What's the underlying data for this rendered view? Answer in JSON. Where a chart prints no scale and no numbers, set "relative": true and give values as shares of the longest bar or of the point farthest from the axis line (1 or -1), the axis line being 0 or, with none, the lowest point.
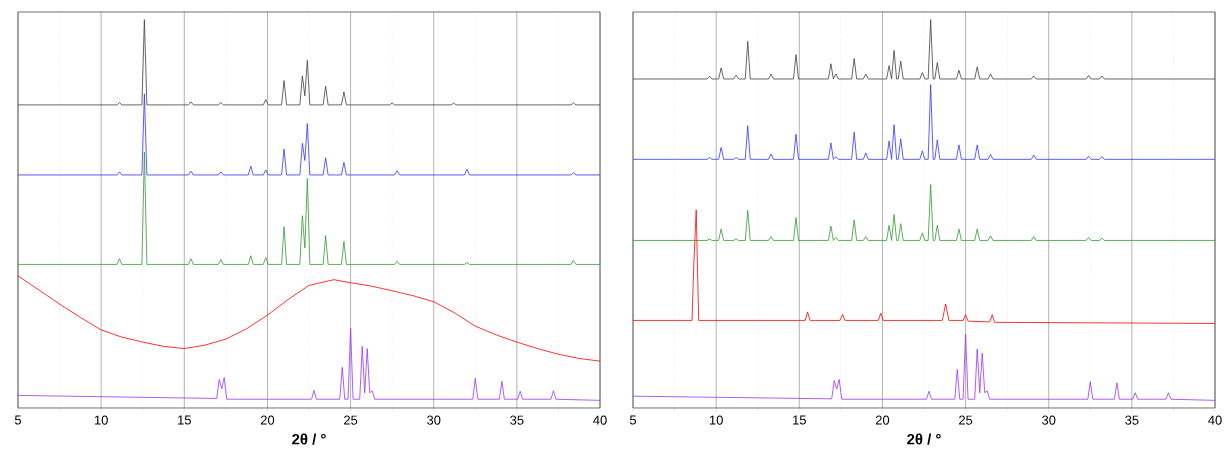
{
  "chart_data": [
    {
      "type": "line",
      "relative": true,
      "xlabel": "**2θ / °**",
      "xlim": [
        5,
        40
      ],
      "xticks": [
        5,
        10,
        15,
        20,
        25,
        30,
        35,
        40
      ],
      "grid": "x",
      "tick_labels": "x",
      "series": [
        {
          "color": "#404040",
          "x": [
            5,
            10.95,
            11.1,
            11.25,
            12.45,
            12.6,
            12.75,
            15.25,
            15.4,
            15.55,
            17.05,
            17.2,
            17.35,
            19.75,
            19.9,
            20.05,
            20.85,
            21.0,
            21.15,
            21.95,
            22.1,
            22.25,
            22.4,
            22.55,
            23.35,
            23.5,
            23.65,
            24.45,
            24.6,
            24.75,
            27.35,
            27.5,
            27.65,
            31.05,
            31.2,
            31.35,
            38.25,
            38.4,
            38.55,
            40
          ],
          "values": [
            0.776,
            0.776,
            0.782,
            0.776,
            0.776,
            1,
            0.776,
            0.776,
            0.784,
            0.776,
            0.776,
            0.782,
            0.776,
            0.776,
            0.79,
            0.776,
            0.776,
            0.84,
            0.776,
            0.776,
            0.852,
            0.8,
            0.893,
            0.776,
            0.776,
            0.825,
            0.776,
            0.776,
            0.81,
            0.776,
            0.776,
            0.781,
            0.776,
            0.776,
            0.781,
            0.776,
            0.776,
            0.781,
            0.776,
            0.776
          ]
        },
        {
          "color": "#3333ff",
          "x": [
            5,
            10.95,
            11.1,
            11.25,
            12.45,
            12.6,
            12.75,
            15.25,
            15.4,
            15.55,
            17.05,
            17.2,
            17.35,
            18.85,
            19.0,
            19.15,
            19.75,
            19.9,
            20.05,
            20.85,
            21.0,
            21.15,
            21.95,
            22.1,
            22.25,
            22.4,
            22.55,
            23.35,
            23.5,
            23.65,
            24.45,
            24.6,
            24.75,
            27.65,
            27.8,
            27.95,
            31.85,
            32.0,
            32.15,
            38.25,
            38.4,
            38.55,
            40
          ],
          "values": [
            0.592,
            0.592,
            0.6,
            0.592,
            0.592,
            0.805,
            0.592,
            0.592,
            0.602,
            0.592,
            0.592,
            0.6,
            0.592,
            0.592,
            0.615,
            0.592,
            0.592,
            0.605,
            0.592,
            0.592,
            0.66,
            0.592,
            0.592,
            0.675,
            0.63,
            0.727,
            0.592,
            0.592,
            0.637,
            0.592,
            0.592,
            0.625,
            0.592,
            0.592,
            0.603,
            0.592,
            0.592,
            0.607,
            0.592,
            0.592,
            0.598,
            0.592,
            0.592
          ]
        },
        {
          "color": "#339933",
          "x": [
            5,
            10.95,
            11.1,
            11.25,
            12.45,
            12.6,
            12.75,
            15.25,
            15.4,
            15.55,
            17.05,
            17.2,
            17.35,
            18.85,
            19.0,
            19.15,
            19.75,
            19.9,
            20.05,
            20.85,
            21.0,
            21.15,
            21.95,
            22.1,
            22.25,
            22.4,
            22.55,
            23.35,
            23.5,
            23.65,
            24.45,
            24.6,
            24.75,
            27.65,
            27.8,
            27.95,
            31.85,
            32.0,
            32.15,
            38.25,
            38.4,
            38.55,
            40
          ],
          "values": [
            0.357,
            0.357,
            0.372,
            0.357,
            0.357,
            0.652,
            0.357,
            0.357,
            0.372,
            0.357,
            0.357,
            0.37,
            0.357,
            0.357,
            0.38,
            0.357,
            0.357,
            0.375,
            0.357,
            0.357,
            0.456,
            0.357,
            0.357,
            0.485,
            0.4,
            0.583,
            0.357,
            0.357,
            0.433,
            0.357,
            0.357,
            0.417,
            0.357,
            0.357,
            0.365,
            0.357,
            0.357,
            0.362,
            0.357,
            0.357,
            0.368,
            0.357,
            0.357
          ]
        },
        {
          "color": "#ff0000",
          "x": [
            5,
            6.25,
            7.5,
            8.75,
            10,
            11.25,
            12.5,
            13.75,
            15,
            16.25,
            17.5,
            18.75,
            20,
            21.25,
            22.5,
            24,
            25,
            26.25,
            27.5,
            28.75,
            30,
            31.25,
            32.5,
            33.75,
            35,
            36.25,
            37.5,
            38.75,
            40
          ],
          "values": [
            0.327,
            0.29,
            0.253,
            0.218,
            0.185,
            0.166,
            0.153,
            0.142,
            0.136,
            0.145,
            0.161,
            0.188,
            0.224,
            0.265,
            0.302,
            0.317,
            0.309,
            0.3,
            0.288,
            0.275,
            0.259,
            0.23,
            0.195,
            0.172,
            0.153,
            0.136,
            0.121,
            0.11,
            0.103
          ]
        },
        {
          "color": "#9933ff",
          "x": [
            5,
            16.95,
            17.1,
            17.25,
            17.4,
            17.55,
            22.65,
            22.8,
            22.95,
            24.35,
            24.5,
            24.65,
            24.85,
            25.0,
            25.15,
            25.55,
            25.7,
            25.85,
            26.0,
            26.15,
            26.3,
            26.45,
            32.35,
            32.5,
            32.65,
            33.95,
            34.1,
            34.25,
            35.05,
            35.2,
            35.35,
            37.05,
            37.2,
            37.35,
            40
          ],
          "values": [
            0.013,
            0.005,
            0.055,
            0.03,
            0.06,
            0.003,
            0.003,
            0.026,
            0.003,
            0.003,
            0.087,
            0.003,
            0.003,
            0.19,
            0.003,
            0.003,
            0.142,
            0.02,
            0.136,
            0.02,
            0.025,
            0.003,
            0.003,
            0.058,
            0.003,
            0.003,
            0.05,
            0.003,
            0.003,
            0.024,
            0.003,
            0.003,
            0.025,
            0.003,
            0
          ]
        }
      ]
    },
    {
      "type": "line",
      "relative": true,
      "xlabel": "**2θ / °**",
      "xlim": [
        5,
        40
      ],
      "xticks": [
        5,
        10,
        15,
        20,
        25,
        30,
        35,
        40
      ],
      "grid": "x",
      "tick_labels": "x",
      "series": [
        {
          "color": "#404040",
          "x": [
            5,
            9.45,
            9.6,
            9.75,
            10.15,
            10.3,
            10.45,
            11.05,
            11.2,
            11.35,
            11.75,
            11.9,
            12.05,
            13.15,
            13.3,
            13.45,
            14.65,
            14.8,
            14.95,
            16.75,
            16.9,
            17.05,
            17.05,
            17.2,
            17.35,
            18.15,
            18.3,
            18.45,
            18.85,
            19.0,
            19.15,
            20.25,
            20.4,
            20.55,
            20.55,
            20.7,
            20.85,
            20.95,
            21.1,
            21.25,
            22.25,
            22.4,
            22.55,
            22.75,
            22.9,
            23.05,
            23.15,
            23.3,
            23.45,
            24.45,
            24.6,
            24.75,
            25.55,
            25.7,
            25.85,
            26.35,
            26.5,
            26.65,
            28.95,
            29.1,
            29.25,
            32.25,
            32.4,
            32.55,
            33.05,
            33.2,
            33.35,
            40
          ],
          "values": [
            0.844,
            0.844,
            0.851,
            0.844,
            0.844,
            0.873,
            0.844,
            0.844,
            0.854,
            0.844,
            0.844,
            0.943,
            0.844,
            0.844,
            0.857,
            0.844,
            0.844,
            0.908,
            0.844,
            0.844,
            0.884,
            0.844,
            0.844,
            0.857,
            0.844,
            0.844,
            0.898,
            0.844,
            0.844,
            0.857,
            0.844,
            0.844,
            0.879,
            0.844,
            0.844,
            0.919,
            0.844,
            0.844,
            0.891,
            0.844,
            0.844,
            0.861,
            0.844,
            0.844,
            1,
            0.844,
            0.844,
            0.887,
            0.844,
            0.844,
            0.867,
            0.844,
            0.844,
            0.876,
            0.844,
            0.844,
            0.857,
            0.844,
            0.844,
            0.852,
            0.844,
            0.844,
            0.853,
            0.844,
            0.844,
            0.852,
            0.844,
            0.844
          ]
        },
        {
          "color": "#3333ff",
          "x": [
            5,
            9.45,
            9.6,
            9.75,
            10.15,
            10.3,
            10.45,
            11.05,
            11.2,
            11.35,
            11.75,
            11.9,
            12.05,
            13.15,
            13.3,
            13.45,
            14.65,
            14.8,
            14.95,
            16.75,
            16.9,
            17.05,
            17.05,
            17.2,
            17.35,
            18.15,
            18.3,
            18.45,
            18.85,
            19.0,
            19.15,
            20.25,
            20.4,
            20.55,
            20.55,
            20.7,
            20.85,
            20.95,
            21.1,
            21.25,
            22.25,
            22.4,
            22.55,
            22.75,
            22.9,
            23.05,
            23.15,
            23.3,
            23.45,
            24.45,
            24.6,
            24.75,
            25.55,
            25.7,
            25.85,
            26.35,
            26.5,
            26.65,
            28.95,
            29.1,
            29.25,
            32.25,
            32.4,
            32.55,
            33.05,
            33.2,
            33.35,
            40
          ],
          "values": [
            0.633,
            0.633,
            0.638,
            0.633,
            0.633,
            0.664,
            0.633,
            0.633,
            0.638,
            0.633,
            0.633,
            0.721,
            0.633,
            0.633,
            0.647,
            0.633,
            0.633,
            0.699,
            0.633,
            0.633,
            0.676,
            0.633,
            0.633,
            0.64,
            0.633,
            0.633,
            0.704,
            0.633,
            0.633,
            0.65,
            0.633,
            0.633,
            0.681,
            0.633,
            0.633,
            0.724,
            0.633,
            0.633,
            0.687,
            0.633,
            0.633,
            0.655,
            0.633,
            0.633,
            0.829,
            0.633,
            0.633,
            0.684,
            0.633,
            0.633,
            0.671,
            0.633,
            0.633,
            0.671,
            0.633,
            0.633,
            0.646,
            0.633,
            0.633,
            0.644,
            0.633,
            0.633,
            0.641,
            0.633,
            0.633,
            0.64,
            0.633,
            0.633
          ]
        },
        {
          "color": "#339933",
          "x": [
            5,
            9.45,
            9.6,
            9.75,
            10.15,
            10.3,
            10.45,
            11.05,
            11.2,
            11.35,
            11.75,
            11.9,
            12.05,
            13.15,
            13.3,
            13.45,
            14.65,
            14.8,
            14.95,
            16.75,
            16.9,
            17.05,
            17.05,
            17.2,
            17.35,
            18.15,
            18.3,
            18.45,
            18.85,
            19.0,
            19.15,
            20.25,
            20.4,
            20.55,
            20.55,
            20.7,
            20.85,
            20.95,
            21.1,
            21.25,
            22.25,
            22.4,
            22.55,
            22.75,
            22.9,
            23.05,
            23.15,
            23.3,
            23.45,
            24.45,
            24.6,
            24.75,
            25.55,
            25.7,
            25.85,
            26.35,
            26.5,
            26.65,
            28.95,
            29.1,
            29.25,
            32.25,
            32.4,
            32.55,
            33.05,
            33.2,
            33.35,
            40
          ],
          "values": [
            0.42,
            0.42,
            0.424,
            0.42,
            0.42,
            0.45,
            0.42,
            0.42,
            0.424,
            0.42,
            0.42,
            0.499,
            0.42,
            0.42,
            0.43,
            0.42,
            0.42,
            0.48,
            0.42,
            0.42,
            0.458,
            0.42,
            0.42,
            0.428,
            0.42,
            0.42,
            0.474,
            0.42,
            0.42,
            0.43,
            0.42,
            0.42,
            0.46,
            0.42,
            0.42,
            0.488,
            0.42,
            0.42,
            0.464,
            0.42,
            0.42,
            0.44,
            0.42,
            0.42,
            0.567,
            0.42,
            0.42,
            0.46,
            0.42,
            0.42,
            0.45,
            0.42,
            0.42,
            0.45,
            0.42,
            0.42,
            0.432,
            0.42,
            0.42,
            0.43,
            0.42,
            0.42,
            0.428,
            0.42,
            0.42,
            0.426,
            0.42,
            0.42
          ]
        },
        {
          "color": "#ff0000",
          "x": [
            5,
            8.55,
            8.65,
            8.8,
            8.95,
            15.35,
            15.5,
            15.65,
            17.45,
            17.6,
            17.75,
            19.75,
            19.9,
            20.05,
            23.6,
            23.8,
            24.0,
            24.85,
            25.0,
            25.15,
            26.45,
            26.6,
            26.75,
            40
          ],
          "values": [
            0.21,
            0.21,
            0.35,
            0.5,
            0.21,
            0.21,
            0.232,
            0.21,
            0.21,
            0.226,
            0.21,
            0.21,
            0.229,
            0.21,
            0.21,
            0.253,
            0.21,
            0.21,
            0.225,
            0.208,
            0.206,
            0.225,
            0.205,
            0.202
          ]
        },
        {
          "color": "#9933ff",
          "x": [
            5,
            16.95,
            17.1,
            17.25,
            17.4,
            17.55,
            22.65,
            22.8,
            22.95,
            24.35,
            24.5,
            24.65,
            24.85,
            25.0,
            25.15,
            25.55,
            25.7,
            25.85,
            26.0,
            26.15,
            26.3,
            26.45,
            32.35,
            32.5,
            32.65,
            33.95,
            34.1,
            34.25,
            35.05,
            35.2,
            35.35,
            37.05,
            37.2,
            37.35,
            40
          ],
          "values": [
            0.011,
            0.004,
            0.052,
            0.03,
            0.055,
            0.003,
            0.003,
            0.024,
            0.003,
            0.003,
            0.081,
            0.003,
            0.003,
            0.174,
            0.003,
            0.003,
            0.135,
            0.02,
            0.124,
            0.02,
            0.025,
            0.003,
            0.003,
            0.049,
            0.003,
            0.003,
            0.046,
            0.003,
            0.003,
            0.02,
            0.003,
            0.003,
            0.02,
            0.003,
            0
          ]
        }
      ]
    }
  ]
}
